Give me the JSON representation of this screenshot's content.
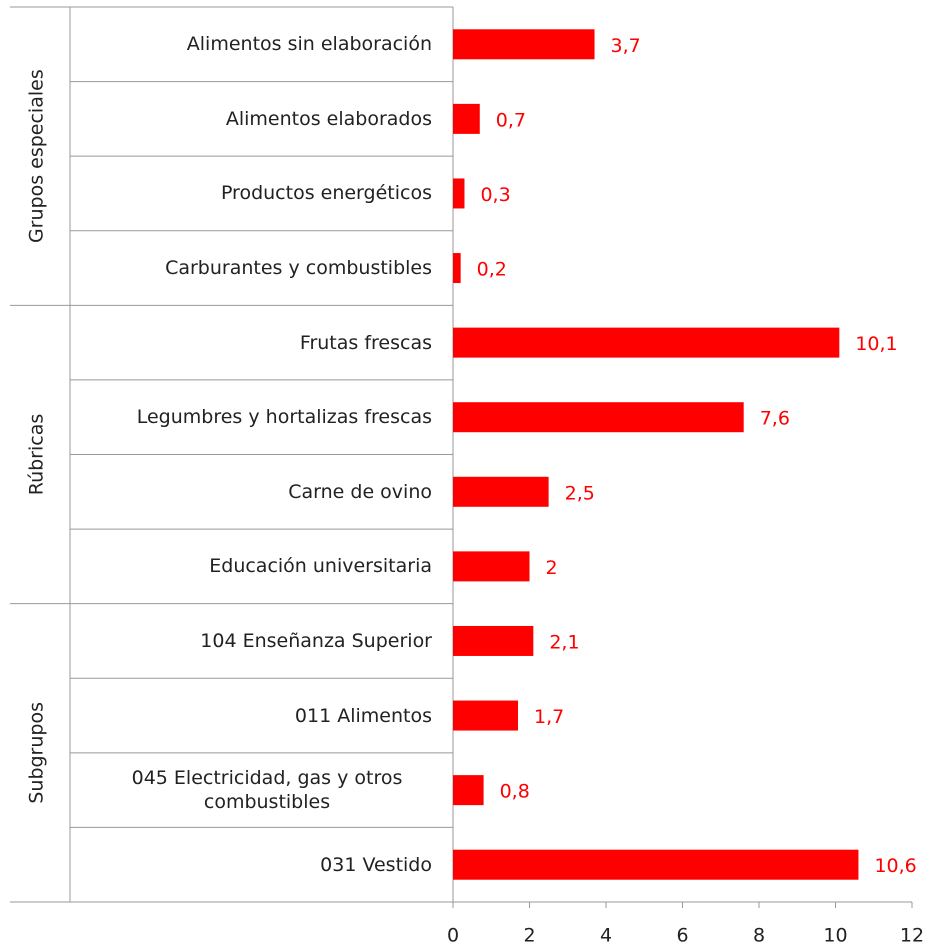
{
  "chart_data": {
    "type": "bar",
    "orientation": "horizontal",
    "color": "#ff0000",
    "groups": [
      {
        "name": "Grupos especiales",
        "categories": [
          "Alimentos sin elaboración",
          "Alimentos elaborados",
          "Productos energéticos",
          "Carburantes y combustibles"
        ],
        "values": [
          3.7,
          0.7,
          0.3,
          0.2
        ],
        "value_labels": [
          "3,7",
          "0,7",
          "0,3",
          "0,2"
        ]
      },
      {
        "name": "Rúbricas",
        "categories": [
          "Frutas frescas",
          "Legumbres y hortalizas frescas",
          "Carne de ovino",
          "Educación universitaria"
        ],
        "values": [
          10.1,
          7.6,
          2.5,
          2
        ],
        "value_labels": [
          "10,1",
          "7,6",
          "2,5",
          "2"
        ]
      },
      {
        "name": "Subgrupos",
        "categories": [
          "104 Enseñanza Superior",
          "011 Alimentos",
          "045 Electricidad, gas y otros combustibles",
          "031 Vestido"
        ],
        "values": [
          2.1,
          1.7,
          0.8,
          10.6
        ],
        "value_labels": [
          "2,1",
          "1,7",
          "0,8",
          "10,6"
        ]
      }
    ],
    "xlim": [
      0,
      12
    ],
    "xticks": [
      0,
      2,
      4,
      6,
      8,
      10,
      12
    ]
  }
}
